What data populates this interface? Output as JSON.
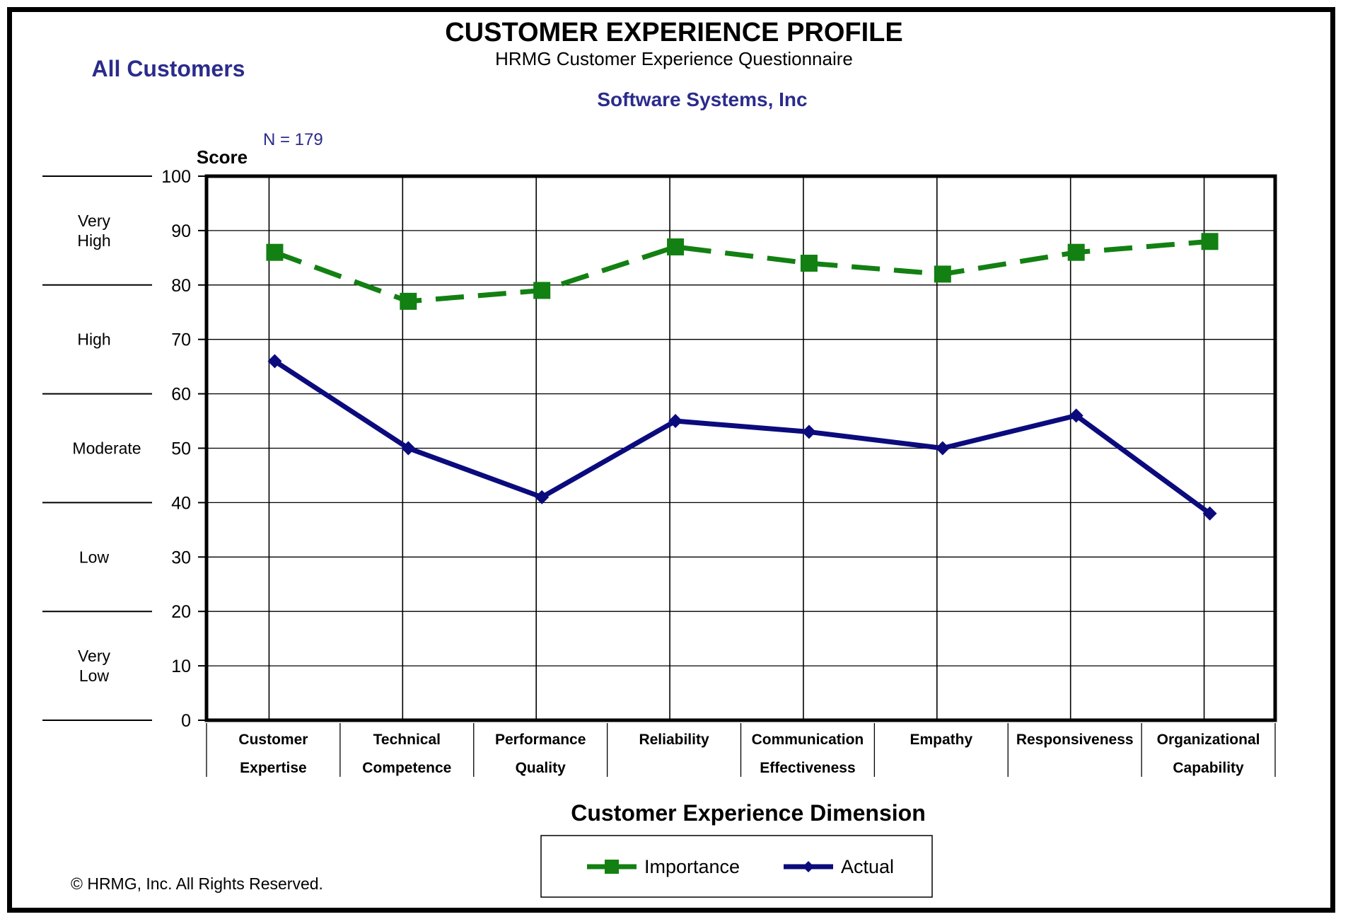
{
  "header": {
    "title": "CUSTOMER EXPERIENCE PROFILE",
    "subtitle": "HRMG Customer Experience Questionnaire",
    "company": "Software Systems, Inc",
    "segment": "All Customers",
    "n_label": "N =  179"
  },
  "footer": {
    "copyright": "© HRMG, Inc.  All Rights Reserved."
  },
  "colors": {
    "navy": "#2b2b8c",
    "importance": "#128012",
    "actual": "#0b0b7e",
    "axis": "#000000"
  },
  "bands": [
    {
      "lines": [
        "Very",
        "High"
      ],
      "from": 80,
      "to": 100
    },
    {
      "lines": [
        "High"
      ],
      "from": 60,
      "to": 80
    },
    {
      "lines": [
        "Moderate"
      ],
      "from": 40,
      "to": 60
    },
    {
      "lines": [
        "Low"
      ],
      "from": 20,
      "to": 40
    },
    {
      "lines": [
        "Very",
        "Low"
      ],
      "from": 0,
      "to": 20
    }
  ],
  "chart_data": {
    "type": "line",
    "title": "CUSTOMER EXPERIENCE PROFILE",
    "ylabel": "Score",
    "xlabel": "Customer Experience Dimension",
    "ylim": [
      0,
      100
    ],
    "yticks": [
      0,
      10,
      20,
      30,
      40,
      50,
      60,
      70,
      80,
      90,
      100
    ],
    "grid": true,
    "legend_position": "bottom-center",
    "categories": [
      [
        "Customer",
        "Expertise"
      ],
      [
        "Technical",
        "Competence"
      ],
      [
        "Performance",
        "Quality"
      ],
      [
        "Reliability"
      ],
      [
        "Communication",
        "Effectiveness"
      ],
      [
        "Empathy"
      ],
      [
        "Responsiveness"
      ],
      [
        "Organizational",
        "Capability"
      ]
    ],
    "series": [
      {
        "name": "Importance",
        "style": "dashed",
        "marker": "square",
        "values": [
          86,
          77,
          79,
          87,
          84,
          82,
          86,
          88
        ]
      },
      {
        "name": "Actual",
        "style": "solid",
        "marker": "diamond",
        "values": [
          66,
          50,
          41,
          55,
          53,
          50,
          56,
          38
        ]
      }
    ]
  }
}
